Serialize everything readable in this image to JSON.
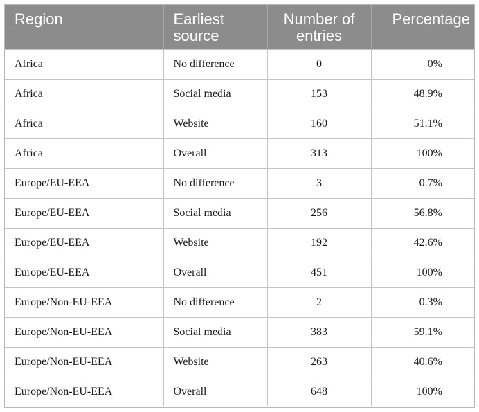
{
  "table": {
    "headers": {
      "region": "Region",
      "earliest_source": "Earliest source",
      "number_of_entries": "Number of entries",
      "percentage": "Percentage"
    },
    "rows": [
      {
        "region": "Africa",
        "source": "No difference",
        "entries": "0",
        "percentage": "0%"
      },
      {
        "region": "Africa",
        "source": "Social media",
        "entries": "153",
        "percentage": "48.9%"
      },
      {
        "region": "Africa",
        "source": "Website",
        "entries": "160",
        "percentage": "51.1%"
      },
      {
        "region": "Africa",
        "source": "Overall",
        "entries": "313",
        "percentage": "100%"
      },
      {
        "region": "Europe/EU-EEA",
        "source": "No difference",
        "entries": "3",
        "percentage": "0.7%"
      },
      {
        "region": "Europe/EU-EEA",
        "source": "Social media",
        "entries": "256",
        "percentage": "56.8%"
      },
      {
        "region": "Europe/EU-EEA",
        "source": "Website",
        "entries": "192",
        "percentage": "42.6%"
      },
      {
        "region": "Europe/EU-EEA",
        "source": "Overall",
        "entries": "451",
        "percentage": "100%"
      },
      {
        "region": "Europe/Non-EU-EEA",
        "source": "No difference",
        "entries": "2",
        "percentage": "0.3%"
      },
      {
        "region": "Europe/Non-EU-EEA",
        "source": "Social media",
        "entries": "383",
        "percentage": "59.1%"
      },
      {
        "region": "Europe/Non-EU-EEA",
        "source": "Website",
        "entries": "263",
        "percentage": "40.6%"
      },
      {
        "region": "Europe/Non-EU-EEA",
        "source": "Overall",
        "entries": "648",
        "percentage": "100%"
      }
    ],
    "colors": {
      "header_background": "#8c8c8c",
      "header_text": "#ffffff",
      "grid_lines": "#c4c4c4"
    }
  }
}
